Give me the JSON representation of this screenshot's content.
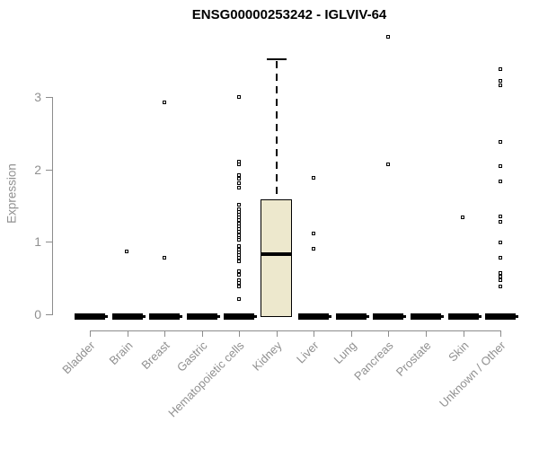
{
  "chart_data": {
    "type": "boxplot",
    "title": "ENSG00000253242 - IGLVIV-64",
    "ylabel": "Expression",
    "xlabel": "",
    "ylim": [
      0,
      3.85
    ],
    "yticks": [
      0,
      1,
      2,
      3
    ],
    "grid": false,
    "legend": "none",
    "axis_color": "#8c8c8c",
    "text_color": "#909090",
    "box_fill": "#ede8cd",
    "box_stroke": "#000000",
    "categories": [
      "Bladder",
      "Brain",
      "Breast",
      "Gastric",
      "Hematopoietic cells",
      "Kidney",
      "Liver",
      "Lung",
      "Pancreas",
      "Prostate",
      "Skin",
      "Unknown / Other"
    ],
    "series": [
      {
        "category": "Bladder",
        "box": {
          "q1": 0,
          "median": 0,
          "q3": 0,
          "whisker_high": 0
        },
        "outliers": []
      },
      {
        "category": "Brain",
        "box": {
          "q1": 0,
          "median": 0,
          "q3": 0,
          "whisker_high": 0
        },
        "outliers": [
          0.86
        ]
      },
      {
        "category": "Breast",
        "box": {
          "q1": 0,
          "median": 0,
          "q3": 0,
          "whisker_high": 0
        },
        "outliers": [
          2.92,
          0.78
        ]
      },
      {
        "category": "Gastric",
        "box": {
          "q1": 0,
          "median": 0,
          "q3": 0,
          "whisker_high": 0
        },
        "outliers": []
      },
      {
        "category": "Hematopoietic cells",
        "box": {
          "q1": 0,
          "median": 0,
          "q3": 0,
          "whisker_high": 0
        },
        "outliers": [
          2.99,
          2.1,
          2.06,
          1.92,
          1.86,
          1.8,
          1.74,
          1.5,
          1.45,
          1.41,
          1.37,
          1.33,
          1.29,
          1.25,
          1.21,
          1.17,
          1.13,
          1.09,
          1.05,
          1.02,
          0.93,
          0.89,
          0.85,
          0.81,
          0.77,
          0.72,
          0.59,
          0.54,
          0.47,
          0.43,
          0.38,
          0.21
        ]
      },
      {
        "category": "Kidney",
        "box": {
          "q1": 0,
          "median": 0.83,
          "q3": 1.59,
          "whisker_high": 3.52
        },
        "outliers": []
      },
      {
        "category": "Liver",
        "box": {
          "q1": 0,
          "median": 0,
          "q3": 0,
          "whisker_high": 0
        },
        "outliers": [
          1.88,
          1.11,
          0.9
        ]
      },
      {
        "category": "Lung",
        "box": {
          "q1": 0,
          "median": 0,
          "q3": 0,
          "whisker_high": 0
        },
        "outliers": []
      },
      {
        "category": "Pancreas",
        "box": {
          "q1": 0,
          "median": 0,
          "q3": 0,
          "whisker_high": 0
        },
        "outliers": [
          3.82,
          2.07
        ]
      },
      {
        "category": "Prostate",
        "box": {
          "q1": 0,
          "median": 0,
          "q3": 0,
          "whisker_high": 0
        },
        "outliers": []
      },
      {
        "category": "Skin",
        "box": {
          "q1": 0,
          "median": 0,
          "q3": 0,
          "whisker_high": 0
        },
        "outliers": [
          1.33
        ]
      },
      {
        "category": "Unknown / Other",
        "box": {
          "q1": 0,
          "median": 0,
          "q3": 0,
          "whisker_high": 0
        },
        "outliers": [
          3.38,
          3.22,
          3.16,
          2.38,
          2.04,
          1.83,
          1.35,
          1.27,
          0.98,
          0.78,
          0.56,
          0.51,
          0.46,
          0.38
        ]
      }
    ]
  }
}
